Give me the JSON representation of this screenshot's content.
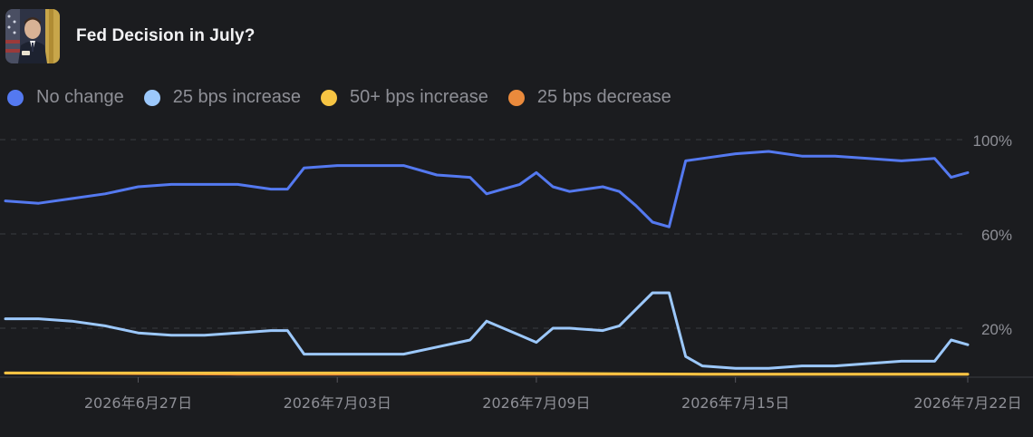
{
  "market": {
    "title": "Fed Decision in July?",
    "thumbnail_icon": "speaker-portrait-thumbnail"
  },
  "chart_data": {
    "type": "line",
    "title": "",
    "xlabel": "",
    "ylabel": "",
    "y_tick_labels": [
      "100%",
      "60%",
      "20%"
    ],
    "y_ticks": [
      100,
      60,
      20
    ],
    "ylim": [
      0,
      100
    ],
    "x_tick_labels": [
      "2026年6月27日",
      "2026年7月03日",
      "2026年7月09日",
      "2026年7月15日",
      "2026年7月22日"
    ],
    "x_ticks": [
      "2026-06-27",
      "2026-07-03",
      "2026-07-09",
      "2026-07-15",
      "2026-07-22"
    ],
    "grid": "horizontal-dashed",
    "legend_position": "top-left",
    "series": [
      {
        "name": "No change",
        "color": "#5479f0",
        "x": [
          "2026-06-23",
          "2026-06-24",
          "2026-06-25",
          "2026-06-26",
          "2026-06-27",
          "2026-06-28",
          "2026-06-29",
          "2026-06-30",
          "2026-07-01",
          "2026-07-01T12",
          "2026-07-02",
          "2026-07-03",
          "2026-07-04",
          "2026-07-05",
          "2026-07-06",
          "2026-07-07",
          "2026-07-07T12",
          "2026-07-08",
          "2026-07-08T12",
          "2026-07-09",
          "2026-07-09T12",
          "2026-07-10",
          "2026-07-11",
          "2026-07-11T12",
          "2026-07-12",
          "2026-07-12T12",
          "2026-07-13",
          "2026-07-13T12",
          "2026-07-14",
          "2026-07-15",
          "2026-07-16",
          "2026-07-17",
          "2026-07-18",
          "2026-07-19",
          "2026-07-20",
          "2026-07-21",
          "2026-07-21T12",
          "2026-07-22"
        ],
        "values": [
          74,
          73,
          75,
          77,
          80,
          81,
          81,
          81,
          79,
          79,
          88,
          89,
          89,
          89,
          85,
          84,
          77,
          79,
          81,
          86,
          80,
          78,
          80,
          78,
          72,
          65,
          63,
          91,
          92,
          94,
          95,
          93,
          93,
          92,
          91,
          92,
          84,
          86
        ]
      },
      {
        "name": "25 bps increase",
        "color": "#9cc8fb",
        "x": [
          "2026-06-23",
          "2026-06-24",
          "2026-06-25",
          "2026-06-26",
          "2026-06-27",
          "2026-06-28",
          "2026-06-29",
          "2026-06-30",
          "2026-07-01",
          "2026-07-01T12",
          "2026-07-02",
          "2026-07-03",
          "2026-07-04",
          "2026-07-05",
          "2026-07-06",
          "2026-07-07",
          "2026-07-07T12",
          "2026-07-08",
          "2026-07-08T12",
          "2026-07-09",
          "2026-07-09T12",
          "2026-07-10",
          "2026-07-11",
          "2026-07-11T12",
          "2026-07-12",
          "2026-07-12T12",
          "2026-07-13",
          "2026-07-13T12",
          "2026-07-14",
          "2026-07-15",
          "2026-07-16",
          "2026-07-17",
          "2026-07-18",
          "2026-07-19",
          "2026-07-20",
          "2026-07-21",
          "2026-07-21T12",
          "2026-07-22"
        ],
        "values": [
          24,
          24,
          23,
          21,
          18,
          17,
          17,
          18,
          19,
          19,
          9,
          9,
          9,
          9,
          12,
          15,
          23,
          20,
          17,
          14,
          20,
          20,
          19,
          21,
          28,
          35,
          35,
          8,
          4,
          3,
          3,
          4,
          4,
          5,
          6,
          6,
          15,
          13
        ]
      },
      {
        "name": "50+ bps increase",
        "color": "#f6c443",
        "x": [
          "2026-06-23",
          "2026-06-30",
          "2026-07-07",
          "2026-07-14",
          "2026-07-22"
        ],
        "values": [
          1,
          1,
          1,
          0.5,
          0.5
        ]
      },
      {
        "name": "25 bps decrease",
        "color": "#ea8a3c",
        "x": [
          "2026-06-23",
          "2026-06-30",
          "2026-07-07",
          "2026-07-14",
          "2026-07-22"
        ],
        "values": [
          1,
          0.5,
          0.5,
          0.5,
          0.5
        ]
      }
    ]
  }
}
